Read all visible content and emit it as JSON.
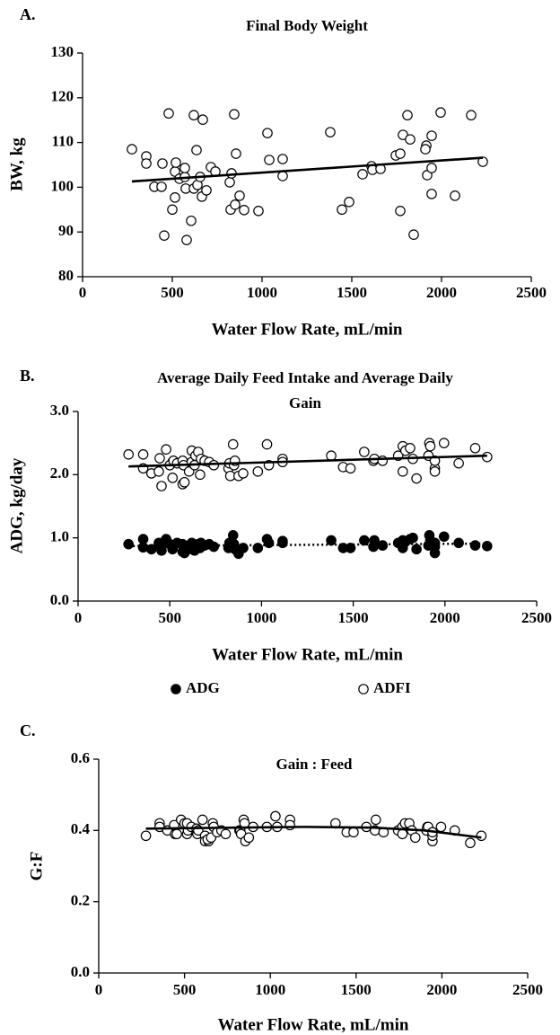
{
  "chart_data": [
    {
      "type": "scatter",
      "label": "A.",
      "title": "Final Body Weight",
      "xlabel": "Water Flow Rate, mL/min",
      "ylabel": "BW, kg",
      "xlim": [
        0,
        2500
      ],
      "xticks": [
        0,
        500,
        1000,
        1500,
        2000,
        2500
      ],
      "ylim": [
        80,
        130
      ],
      "yticks": [
        80,
        90,
        100,
        110,
        120,
        130
      ],
      "x": [
        275,
        355,
        355,
        400,
        445,
        440,
        455,
        480,
        515,
        500,
        520,
        515,
        540,
        570,
        570,
        575,
        580,
        605,
        620,
        620,
        640,
        635,
        655,
        665,
        670,
        690,
        715,
        740,
        820,
        825,
        830,
        845,
        850,
        855,
        875,
        900,
        980,
        1030,
        1040,
        1115,
        1115,
        1380,
        1445,
        1485,
        1560,
        1610,
        1615,
        1660,
        1745,
        1770,
        1770,
        1785,
        1810,
        1825,
        1845,
        1915,
        1910,
        1920,
        1945,
        1945,
        1945,
        1995,
        2075,
        2165,
        2230
      ],
      "series": [
        {
          "color": "white",
          "values": [
            108.5,
            106.9,
            105.3,
            100.1,
            105.3,
            100.1,
            89.2,
            116.5,
            103.5,
            95,
            105.5,
            97.7,
            101.9,
            102.3,
            104.3,
            99.7,
            88.2,
            92.5,
            116.1,
            99.7,
            100.5,
            108.3,
            102.3,
            97.9,
            115.1,
            99.3,
            104.5,
            103.5,
            101.1,
            95,
            103.1,
            116.3,
            96.1,
            107.5,
            98.1,
            94.9,
            94.7,
            112.1,
            106.1,
            106.3,
            102.5,
            112.3,
            95,
            96.7,
            102.9,
            104.7,
            103.9,
            104.1,
            107.1,
            107.5,
            94.7,
            111.7,
            116.1,
            110.7,
            89.4,
            109.3,
            108.5,
            102.7,
            111.5,
            104.3,
            98.5,
            116.7,
            98.1,
            116.1,
            105.7
          ],
          "trend": {
            "x": [
              275,
              2230
            ],
            "values": [
              101.3,
              106.6
            ],
            "style": "solid"
          }
        }
      ]
    },
    {
      "type": "scatter",
      "label": "B.",
      "title": [
        "Average Daily Feed Intake and Average Daily",
        "Gain"
      ],
      "xlabel": "Water Flow Rate, mL/min",
      "ylabel": "ADG, kg/day",
      "xlim": [
        0,
        2500
      ],
      "xticks": [
        0,
        500,
        1000,
        1500,
        2000,
        2500
      ],
      "ylim": [
        0,
        3
      ],
      "yticks": [
        {
          "value": 0,
          "label": "0.0"
        },
        {
          "value": 1,
          "label": "1.0"
        },
        {
          "value": 2,
          "label": "2.0"
        },
        {
          "value": 3,
          "label": "3.0"
        }
      ],
      "legend": "bottom",
      "x": [
        275,
        355,
        355,
        400,
        445,
        440,
        455,
        480,
        515,
        500,
        520,
        515,
        540,
        570,
        570,
        575,
        580,
        605,
        620,
        620,
        640,
        635,
        655,
        665,
        670,
        690,
        715,
        740,
        820,
        825,
        830,
        845,
        850,
        855,
        875,
        900,
        980,
        1030,
        1040,
        1115,
        1115,
        1380,
        1445,
        1485,
        1560,
        1610,
        1615,
        1660,
        1745,
        1770,
        1770,
        1785,
        1810,
        1825,
        1845,
        1915,
        1910,
        1920,
        1945,
        1945,
        1945,
        1995,
        2075,
        2165,
        2230
      ],
      "series": [
        {
          "name": "ADG",
          "color": "black",
          "values": [
            0.9,
            0.85,
            0.98,
            0.82,
            0.88,
            0.92,
            0.8,
            0.98,
            0.85,
            0.9,
            0.88,
            0.82,
            0.92,
            0.78,
            0.9,
            0.85,
            0.76,
            0.88,
            0.92,
            0.82,
            0.86,
            0.8,
            0.9,
            0.84,
            0.92,
            0.88,
            0.9,
            0.86,
            0.84,
            0.92,
            0.88,
            1.04,
            0.9,
            0.82,
            0.75,
            0.84,
            0.84,
            0.98,
            0.92,
            0.95,
            0.92,
            0.96,
            0.84,
            0.84,
            0.96,
            0.86,
            0.96,
            0.88,
            0.92,
            0.96,
            0.84,
            0.94,
            0.98,
            1.0,
            0.82,
            1.04,
            0.88,
            0.96,
            0.86,
            0.92,
            0.76,
            1.02,
            0.92,
            0.88,
            0.87
          ],
          "trend": {
            "x": [
              275,
              2230
            ],
            "values": [
              0.87,
              0.91
            ],
            "style": "dotted"
          }
        },
        {
          "name": "ADFI",
          "color": "white",
          "values": [
            2.32,
            2.1,
            2.32,
            2.02,
            2.26,
            2.05,
            1.82,
            2.4,
            2.2,
            2.15,
            2.22,
            1.95,
            2.18,
            1.85,
            2.22,
            2.15,
            1.88,
            2.05,
            2.38,
            2.2,
            2.3,
            2.15,
            2.36,
            2.0,
            2.25,
            2.22,
            2.2,
            2.15,
            2.1,
            2.18,
            1.98,
            2.48,
            2.15,
            2.22,
            1.98,
            2.02,
            2.05,
            2.48,
            2.15,
            2.25,
            2.2,
            2.3,
            2.12,
            2.1,
            2.36,
            2.22,
            2.25,
            2.22,
            2.3,
            2.45,
            2.05,
            2.38,
            2.42,
            2.25,
            1.94,
            2.5,
            2.3,
            2.45,
            2.1,
            2.22,
            2.05,
            2.5,
            2.18,
            2.42,
            2.28
          ],
          "trend": {
            "x": [
              275,
              2230
            ],
            "values": [
              2.13,
              2.3
            ],
            "style": "solid"
          }
        }
      ]
    },
    {
      "type": "scatter",
      "label": "C.",
      "title": "Gain : Feed",
      "xlabel": "Water Flow Rate, mL/min",
      "ylabel": "G:F",
      "xlim": [
        0,
        2500
      ],
      "xticks": [
        0,
        500,
        1000,
        1500,
        2000,
        2500
      ],
      "ylim": [
        0,
        0.6
      ],
      "yticks": [
        {
          "value": 0,
          "label": "0.0"
        },
        0.2,
        0.4,
        0.6
      ],
      "x": [
        275,
        355,
        355,
        400,
        445,
        440,
        455,
        480,
        515,
        500,
        520,
        515,
        540,
        570,
        570,
        575,
        580,
        605,
        620,
        620,
        640,
        635,
        655,
        665,
        670,
        690,
        715,
        740,
        820,
        825,
        830,
        845,
        850,
        855,
        875,
        900,
        980,
        1030,
        1040,
        1115,
        1115,
        1380,
        1445,
        1485,
        1560,
        1610,
        1615,
        1660,
        1745,
        1770,
        1770,
        1785,
        1810,
        1825,
        1845,
        1915,
        1910,
        1920,
        1945,
        1945,
        1945,
        1995,
        2075,
        2165,
        2230
      ],
      "series": [
        {
          "color": "white",
          "values": [
            0.385,
            0.42,
            0.41,
            0.4,
            0.39,
            0.415,
            0.39,
            0.43,
            0.39,
            0.42,
            0.4,
            0.42,
            0.41,
            0.395,
            0.405,
            0.39,
            0.4,
            0.43,
            0.385,
            0.37,
            0.37,
            0.375,
            0.38,
            0.42,
            0.41,
            0.395,
            0.4,
            0.39,
            0.4,
            0.4,
            0.39,
            0.43,
            0.42,
            0.37,
            0.38,
            0.41,
            0.41,
            0.44,
            0.41,
            0.43,
            0.415,
            0.42,
            0.395,
            0.395,
            0.41,
            0.4,
            0.43,
            0.395,
            0.4,
            0.41,
            0.39,
            0.42,
            0.42,
            0.4,
            0.38,
            0.41,
            0.4,
            0.41,
            0.37,
            0.385,
            0.395,
            0.41,
            0.4,
            0.365,
            0.385
          ],
          "trend": {
            "x": [
              275,
              800,
              1200,
              1600,
              1900,
              2230
            ],
            "values": [
              0.405,
              0.408,
              0.41,
              0.408,
              0.4,
              0.38
            ],
            "style": "solid"
          }
        }
      ]
    }
  ]
}
